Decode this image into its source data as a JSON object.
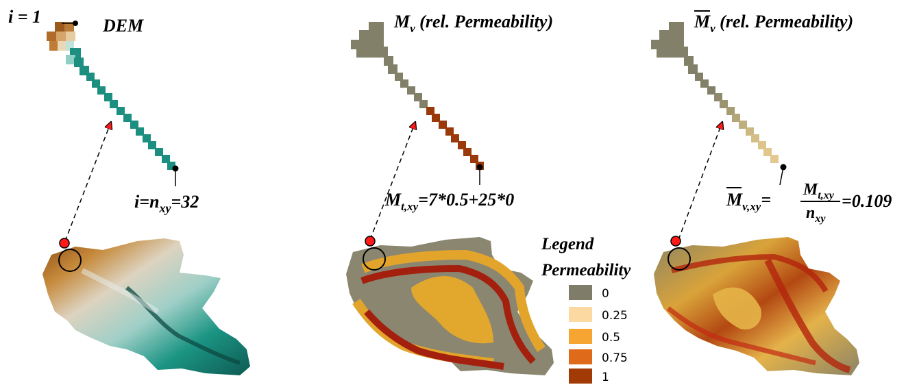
{
  "panels": {
    "dem": {
      "title": "DEM",
      "start_index": "i = 1",
      "end_i": "i",
      "end_eq": "=",
      "end_n": "n",
      "end_sub": "xy",
      "end_val": "=32",
      "colors": {
        "high": "#8b4a0f",
        "mid": "#c98a3a",
        "low": "#1b8f80",
        "light": "#dfe6e4"
      }
    },
    "mv": {
      "title_m": "M",
      "title_sub": "v",
      "title_rest": " (rel. Permeability)",
      "formula_m": "M",
      "formula_sub": "t,xy",
      "formula_rest": "=7*0.5+25*0",
      "colors": {
        "gray": "#83806a",
        "brown": "#9a3a0b"
      }
    },
    "mv_bar": {
      "title_m": "M",
      "title_sub": "v",
      "title_rest": " (rel. Permeability)",
      "lhs_m": "M",
      "lhs_sub": "v,xy",
      "eq": "=",
      "num_m": "M",
      "num_sub": "t,xy",
      "den_n": "n",
      "den_sub": "xy",
      "result": "=0.109",
      "colors": {
        "gray": "#83806a",
        "tan": "#e3c890"
      }
    }
  },
  "legend": {
    "title1": "Legend",
    "title2": "Permeability",
    "items": [
      {
        "label": "0",
        "color": "#7f7c6a"
      },
      {
        "label": "0.25",
        "color": "#fbd9a0"
      },
      {
        "label": "0.5",
        "color": "#f6a532"
      },
      {
        "label": "0.75",
        "color": "#df6a1a"
      },
      {
        "label": "1",
        "color": "#a13a05"
      }
    ]
  }
}
